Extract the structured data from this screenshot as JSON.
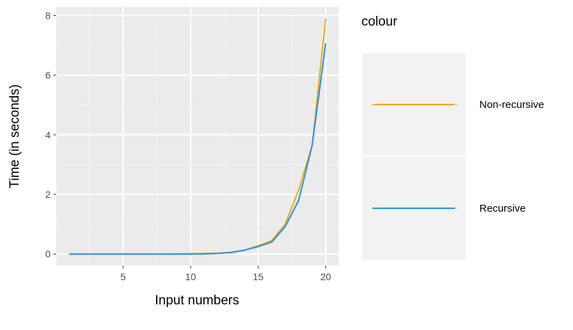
{
  "chart_data": {
    "type": "line",
    "title": "",
    "xlabel": "Input numbers",
    "ylabel": "Time (in seconds)",
    "xlim": [
      0.05,
      20.95
    ],
    "ylim": [
      -0.39,
      8.29
    ],
    "x_ticks": [
      5,
      10,
      15,
      20
    ],
    "x_tick_labels": [
      "5",
      "10",
      "15",
      "20"
    ],
    "y_ticks": [
      0,
      2,
      4,
      6,
      8
    ],
    "y_tick_labels": [
      "0",
      "2",
      "4",
      "6",
      "8"
    ],
    "grid": true,
    "legend": {
      "title": "colour",
      "position": "right"
    },
    "x": [
      1,
      2,
      3,
      4,
      5,
      6,
      7,
      8,
      9,
      10,
      11,
      12,
      13,
      14,
      15,
      16,
      17,
      18,
      19,
      20
    ],
    "series": [
      {
        "name": "Non-recursive",
        "color": "#FFA500",
        "values": [
          0,
          0,
          0,
          0,
          0,
          0,
          0,
          0,
          0.005,
          0.01,
          0.02,
          0.03,
          0.06,
          0.13,
          0.28,
          0.45,
          1.0,
          2.15,
          3.65,
          7.9
        ]
      },
      {
        "name": "Recursive",
        "color": "#1E90FF",
        "values": [
          0,
          0,
          0,
          0,
          0,
          0,
          0,
          0,
          0,
          0,
          0.005,
          0.02,
          0.05,
          0.13,
          0.25,
          0.4,
          0.92,
          1.8,
          3.65,
          7.07
        ]
      }
    ]
  }
}
